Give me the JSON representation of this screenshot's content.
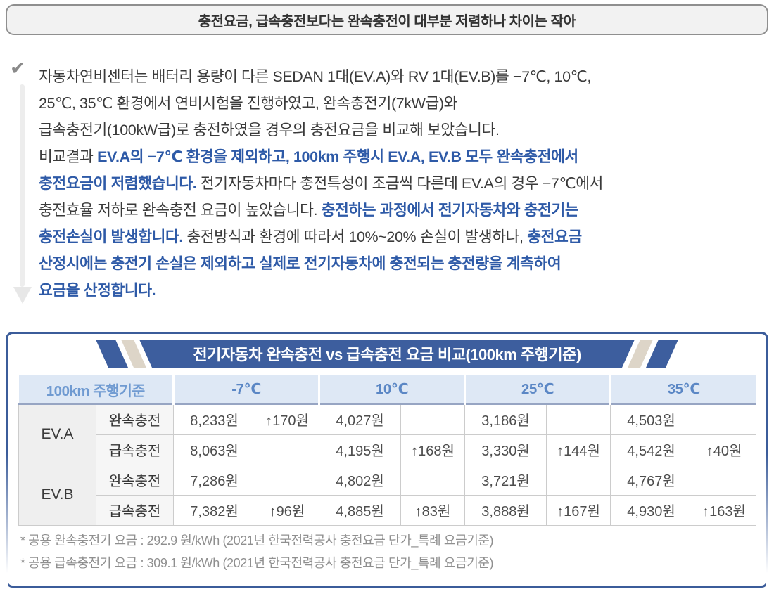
{
  "headline": {
    "title": "충전요금, 급속충전보다는 완속충전이 대부분 저렴하나 차이는 작아"
  },
  "icons": {
    "check": "✔",
    "up_arrow": "↑"
  },
  "paragraph": {
    "lines": [
      [
        {
          "t": "자동차연비센터는 배터리 용량이 다른 SEDAN 1대(EV.A)와 RV 1대(EV.B)를 −7℃, 10℃,",
          "s": "n"
        }
      ],
      [
        {
          "t": "25℃, 35℃ 환경에서 연비시험을 진행하였고, 완속충전기(7kW급)와",
          "s": "n"
        }
      ],
      [
        {
          "t": "급속충전기(100kW급)로 충전하였을 경우의 충전요금을 비교해 보았습니다.",
          "s": "n"
        }
      ],
      [
        {
          "t": "비교결과 ",
          "s": "n"
        },
        {
          "t": "EV.A의 −7℃ 환경을 제외하고, 100km 주행시 EV.A, EV.B 모두 완속충전에서",
          "s": "b"
        }
      ],
      [
        {
          "t": "충전요금이 저렴했습니다.",
          "s": "b"
        },
        {
          "t": " 전기자동차마다 충전특성이 조금씩 다른데 EV.A의 경우 −7℃에서",
          "s": "n"
        }
      ],
      [
        {
          "t": "충전효율 저하로 완속충전 요금이 높았습니다. ",
          "s": "n"
        },
        {
          "t": "충전하는 과정에서 전기자동차와 충전기는",
          "s": "b"
        }
      ],
      [
        {
          "t": "충전손실이 발생합니다.",
          "s": "b"
        },
        {
          "t": " 충전방식과 환경에 따라서 10%~20% 손실이 발생하나, ",
          "s": "n"
        },
        {
          "t": "충전요금",
          "s": "b"
        }
      ],
      [
        {
          "t": "산정시에는 충전기 손실은 제외하고 실제로 전기자동차에 충전되는 충전량을 계측하여",
          "s": "b"
        }
      ],
      [
        {
          "t": "요금을 산정합니다.",
          "s": "b"
        }
      ]
    ]
  },
  "table_section": {
    "banner_title": "전기자동차 완속충전 vs 급속충전 요금 비교(100km 주행기준)",
    "corner_header": "100km 주행기준",
    "temp_headers": [
      "-7℃",
      "10℃",
      "25℃",
      "35℃"
    ],
    "rows": [
      {
        "vehicle": "EV.A",
        "span": 2,
        "charge_type": "완속충전",
        "cells": [
          {
            "v": "8,233원",
            "d": "↑170원"
          },
          {
            "v": "4,027원",
            "d": ""
          },
          {
            "v": "3,186원",
            "d": ""
          },
          {
            "v": "4,503원",
            "d": ""
          }
        ]
      },
      {
        "vehicle": null,
        "charge_type": "급속충전",
        "cells": [
          {
            "v": "8,063원",
            "d": ""
          },
          {
            "v": "4,195원",
            "d": "↑168원"
          },
          {
            "v": "3,330원",
            "d": "↑144원"
          },
          {
            "v": "4,542원",
            "d": "↑40원"
          }
        ]
      },
      {
        "vehicle": "EV.B",
        "span": 2,
        "charge_type": "완속충전",
        "cells": [
          {
            "v": "7,286원",
            "d": ""
          },
          {
            "v": "4,802원",
            "d": ""
          },
          {
            "v": "3,721원",
            "d": ""
          },
          {
            "v": "4,767원",
            "d": ""
          }
        ]
      },
      {
        "vehicle": null,
        "charge_type": "급속충전",
        "cells": [
          {
            "v": "7,382원",
            "d": "↑96원"
          },
          {
            "v": "4,885원",
            "d": "↑83원"
          },
          {
            "v": "3,888원",
            "d": "↑167원"
          },
          {
            "v": "4,930원",
            "d": "↑163원"
          }
        ]
      }
    ],
    "footnotes": [
      "* 공용 완속충전기 요금 : 292.9 원/kWh (2021년 한국전력공사 충전요금 단가_특례 요금기준)",
      "* 공용 급속충전기 요금 : 309.1 원/kWh (2021년 한국전력공사 충전요금 단가_특례 요금기준)"
    ]
  },
  "colors": {
    "banner_blue": "#3d5e9e",
    "banner_beige": "#ddd5c8",
    "panel_border": "#3b5c9a",
    "header_bg": "#dee8f5",
    "header_text": "#5b87c5",
    "accent_text_blue": "#2e5aa7",
    "body_text": "#3a3a3a",
    "footnote_gray": "#8f8f8f"
  }
}
